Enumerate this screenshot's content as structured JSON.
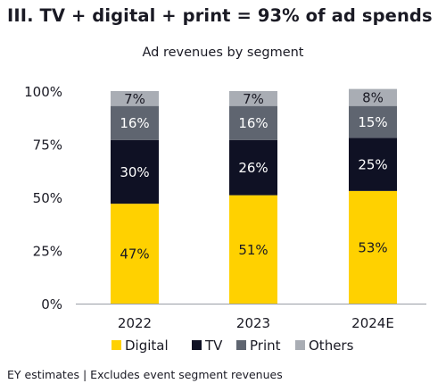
{
  "heading": "III. TV + digital + print = 93% of ad spends",
  "footnote": "EY estimates | Excludes event segment revenues",
  "chart_data": {
    "type": "bar",
    "stacked": true,
    "title": "Ad revenues by segment",
    "categories": [
      "2022",
      "2023",
      "2024E"
    ],
    "series": [
      {
        "name": "Digital",
        "color": "#ffd100",
        "label_color": "#1a1a24",
        "values": [
          47,
          51,
          53
        ]
      },
      {
        "name": "TV",
        "color": "#0f1124",
        "label_color": "#ffffff",
        "values": [
          30,
          26,
          25
        ]
      },
      {
        "name": "Print",
        "color": "#5f6570",
        "label_color": "#ffffff",
        "values": [
          16,
          16,
          15
        ]
      },
      {
        "name": "Others",
        "color": "#a9adb4",
        "label_color": "#1a1a24",
        "values": [
          7,
          7,
          8
        ]
      }
    ],
    "value_suffix": "%",
    "ylim": [
      0,
      100
    ],
    "yticks": [
      0,
      25,
      50,
      75,
      100
    ],
    "ytick_labels": [
      "0%",
      "25%",
      "50%",
      "75%",
      "100%"
    ],
    "grid": false,
    "legend_position": "bottom"
  }
}
